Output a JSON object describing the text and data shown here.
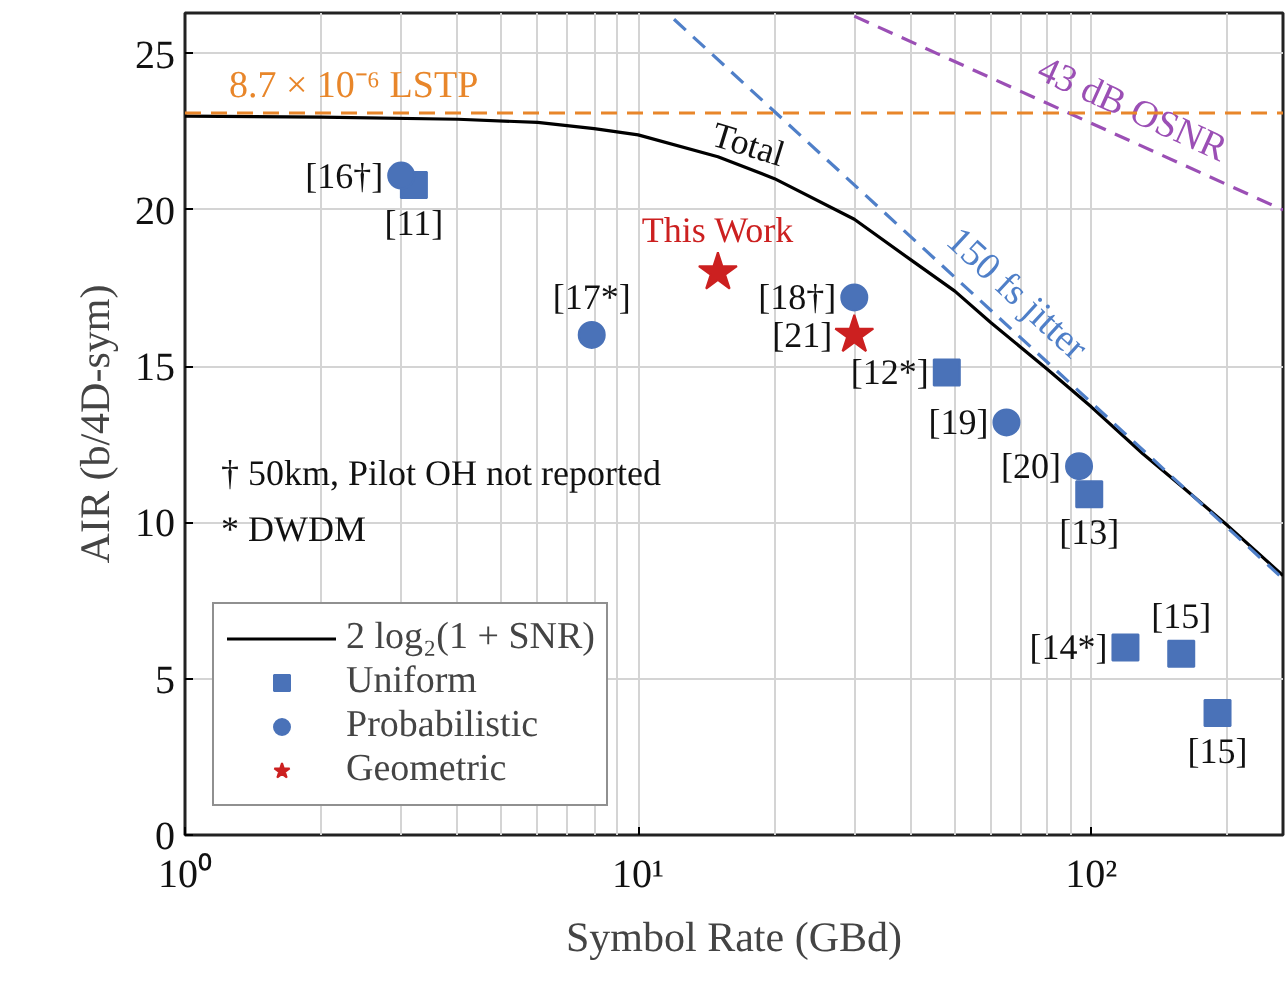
{
  "chart_data": {
    "type": "scatter",
    "xlabel": "Symbol Rate (GBd)",
    "ylabel": "AIR (b/4D-sym)",
    "log": "x",
    "xlim": [
      1,
      265
    ],
    "ylim": [
      0,
      26.3
    ],
    "xticks": [
      {
        "value": 1,
        "label": "10⁰"
      },
      {
        "value": 10,
        "label": "10¹"
      },
      {
        "value": 100,
        "label": "10²"
      }
    ],
    "yticks": [
      0,
      5,
      10,
      15,
      20,
      25
    ],
    "grid": true,
    "legend": "bottom left",
    "ref_lines": [
      {
        "axis": "y",
        "value": 23.1,
        "label": "8.7 × 10⁻⁶  LSTP",
        "color": "#e8862a",
        "line_style": "dashed"
      }
    ],
    "series": [
      {
        "name": "2 log₂(1 + SNR)",
        "type": "line",
        "color": "#000000",
        "line_style": "solid",
        "x": [
          1,
          2,
          4,
          6,
          8,
          10,
          15,
          20,
          30,
          40,
          50,
          60,
          80,
          100,
          130,
          160,
          200,
          265
        ],
        "values": [
          23.0,
          22.97,
          22.9,
          22.8,
          22.6,
          22.4,
          21.7,
          21.0,
          19.7,
          18.4,
          17.4,
          16.4,
          14.9,
          13.7,
          12.2,
          11.1,
          9.9,
          8.3
        ]
      },
      {
        "name": "150 fs jitter",
        "type": "line",
        "color": "#4f7fc8",
        "line_style": "dashed",
        "x": [
          12,
          265
        ],
        "values": [
          26.1,
          8.2
        ]
      },
      {
        "name": "43 dB OSNR",
        "type": "line",
        "color": "#9b4fb5",
        "line_style": "dashed",
        "x": [
          30,
          265
        ],
        "values": [
          26.2,
          20.0
        ]
      },
      {
        "name": "Uniform",
        "marker": "square",
        "color": "#4a72b8",
        "x": [
          3.2,
          48,
          99,
          119,
          158,
          190
        ],
        "values": [
          20.8,
          14.8,
          10.9,
          6.0,
          5.8,
          3.9
        ]
      },
      {
        "name": "Probabilistic",
        "marker": "circle",
        "color": "#4a72b8",
        "x": [
          3.0,
          7.9,
          30,
          65,
          94
        ],
        "values": [
          21.1,
          16.0,
          17.2,
          13.2,
          11.8
        ]
      },
      {
        "name": "Geometric",
        "marker": "star",
        "color": "#cc2020",
        "x": [
          15,
          30
        ],
        "values": [
          18.0,
          16.0
        ]
      }
    ],
    "annotations": [
      {
        "text": "[16†]",
        "x": 3.0,
        "y": 21.1
      },
      {
        "text": "[11]",
        "x": 3.2,
        "y": 20.8
      },
      {
        "text": "[17*]",
        "x": 7.9,
        "y": 16.0
      },
      {
        "text": "This Work",
        "x": 15,
        "y": 18.0
      },
      {
        "text": "[18†]",
        "x": 30,
        "y": 17.2
      },
      {
        "text": "[21]",
        "x": 30,
        "y": 16.0
      },
      {
        "text": "[12*]",
        "x": 48,
        "y": 14.8
      },
      {
        "text": "[19]",
        "x": 65,
        "y": 13.2
      },
      {
        "text": "[20]",
        "x": 94,
        "y": 11.8
      },
      {
        "text": "[13]",
        "x": 99,
        "y": 10.9
      },
      {
        "text": "[14*]",
        "x": 119,
        "y": 6.0
      },
      {
        "text": "[15]",
        "x": 158,
        "y": 5.8
      },
      {
        "text": "[15]",
        "x": 190,
        "y": 3.9
      },
      {
        "text": "Total",
        "x": 17,
        "y": 21.3
      },
      "†  50km, Pilot OH not reported",
      "*  DWDM"
    ]
  }
}
